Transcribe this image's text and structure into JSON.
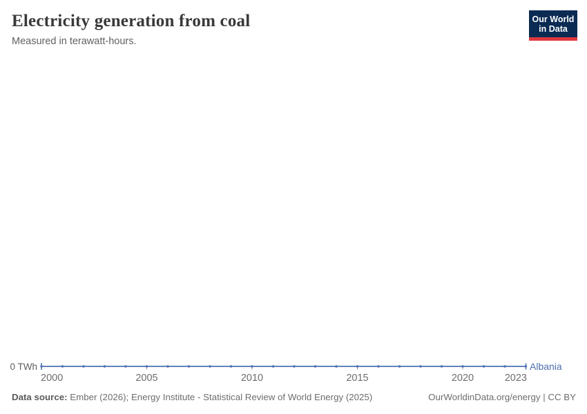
{
  "header": {
    "title": "Electricity generation from coal",
    "subtitle": "Measured in terawatt-hours."
  },
  "logo": {
    "line1": "Our World",
    "line2": "in Data",
    "bg_color": "#0b2b53",
    "accent_color": "#e0383e"
  },
  "chart_data": {
    "type": "line",
    "title": "Electricity generation from coal",
    "ylabel": "terawatt-hours",
    "y_axis_tick_label": "0 TWh",
    "x": [
      2000,
      2001,
      2002,
      2003,
      2004,
      2005,
      2006,
      2007,
      2008,
      2009,
      2010,
      2011,
      2012,
      2013,
      2014,
      2015,
      2016,
      2017,
      2018,
      2019,
      2020,
      2021,
      2022,
      2023
    ],
    "series": [
      {
        "name": "Albania",
        "color": "#4c6fad",
        "values": [
          0,
          0,
          0,
          0,
          0,
          0,
          0,
          0,
          0,
          0,
          0,
          0,
          0,
          0,
          0,
          0,
          0,
          0,
          0,
          0,
          0,
          0,
          0,
          0
        ]
      }
    ],
    "x_tick_labels": [
      2000,
      2005,
      2010,
      2015,
      2020,
      2023
    ],
    "xlim": [
      2000,
      2023
    ],
    "ylim": [
      0,
      1
    ],
    "grid": false,
    "legend_position": "end-of-line",
    "tick_color": "#8396b5",
    "axis_text_color": "#6d6d6d"
  },
  "footer": {
    "source_label": "Data source:",
    "source_text": " Ember (2026); Energy Institute - Statistical Review of World Energy (2025)",
    "attribution": "OurWorldinData.org/energy | CC BY"
  }
}
